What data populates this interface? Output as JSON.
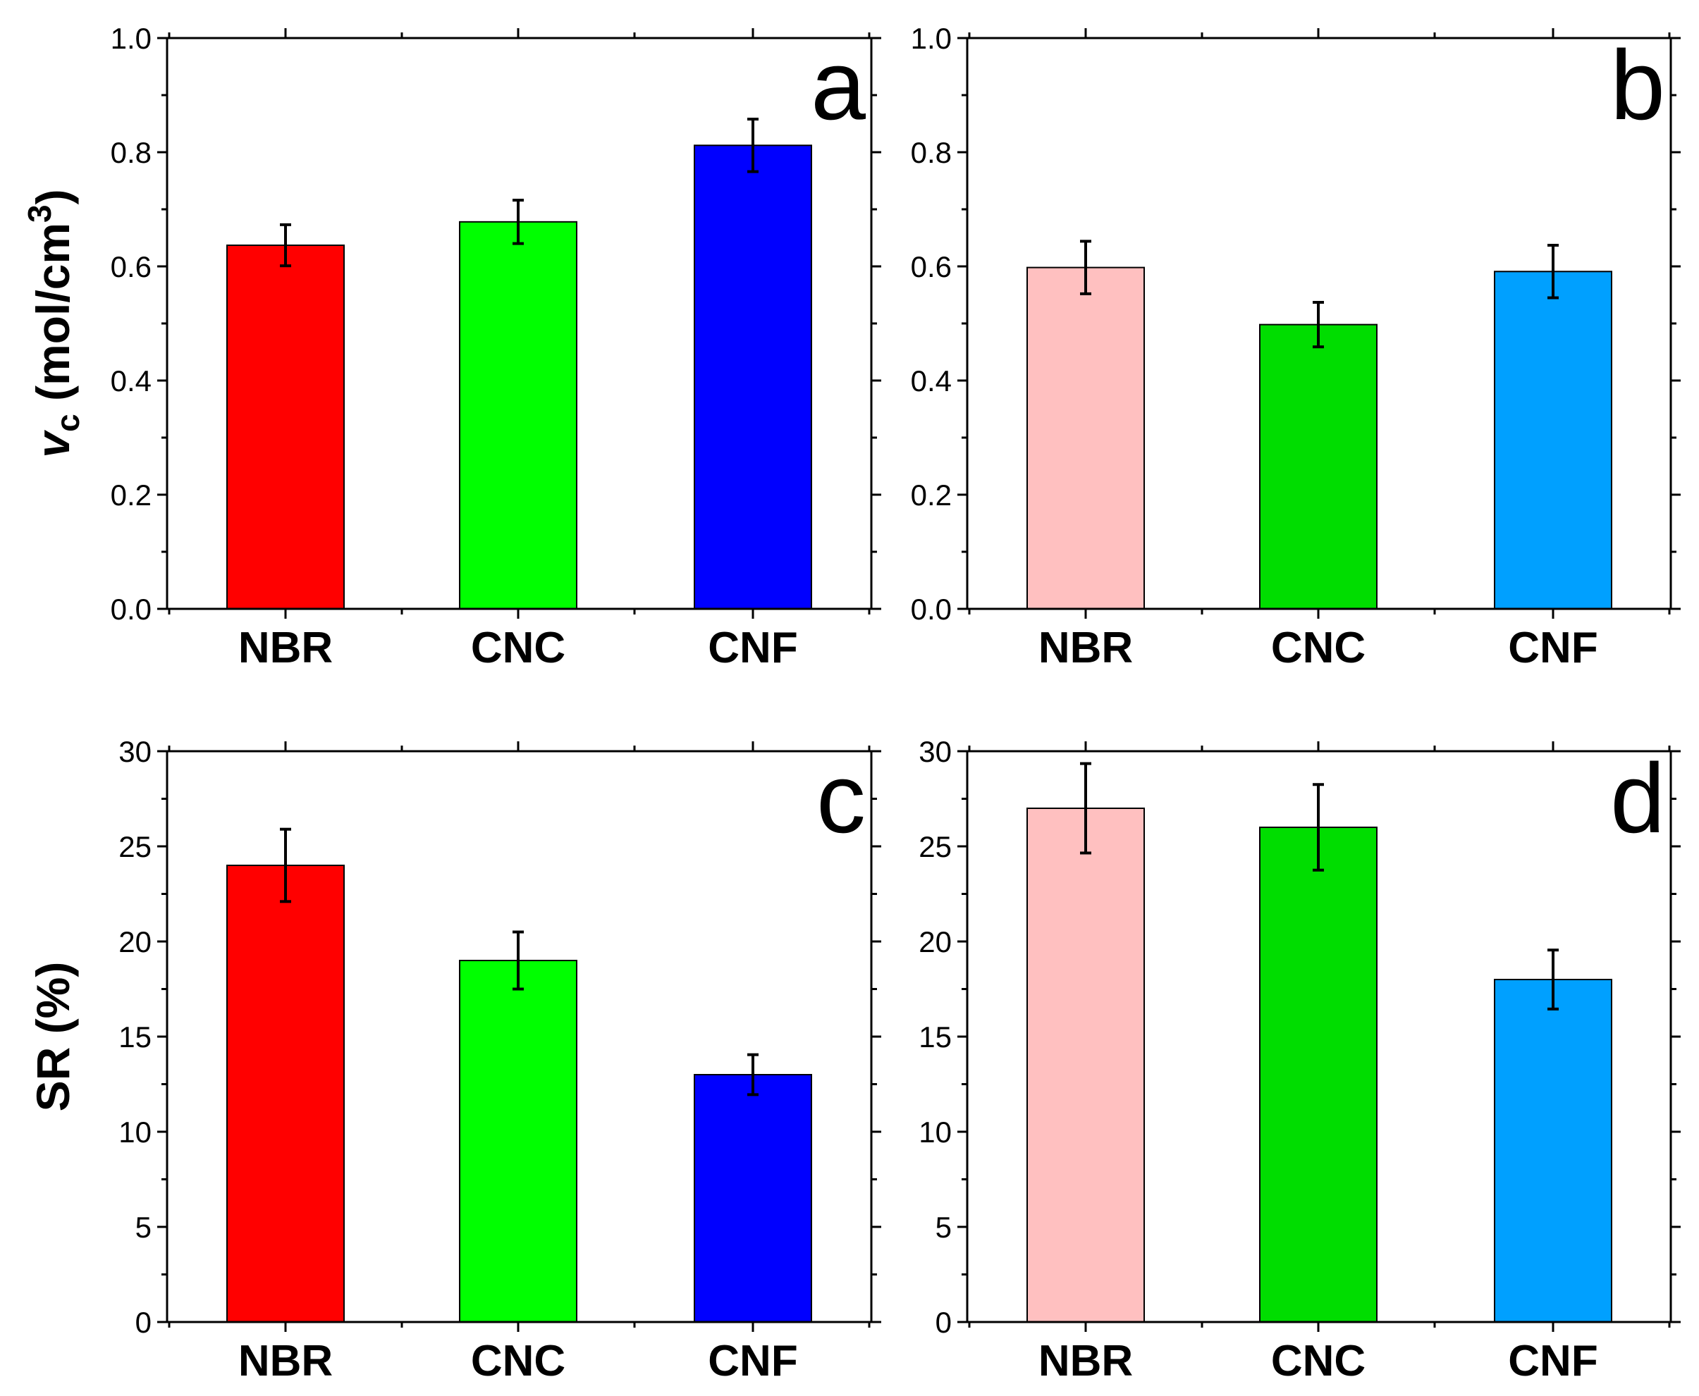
{
  "chart_data": [
    {
      "panel": "a",
      "type": "bar",
      "categories": [
        "NBR",
        "CNC",
        "CNF"
      ],
      "values": [
        0.637,
        0.678,
        0.812
      ],
      "errors": [
        0.036,
        0.038,
        0.046
      ],
      "colors": [
        "#ff0000",
        "#00ff00",
        "#0000ff"
      ],
      "ylim": [
        0,
        1.0
      ],
      "yticks": [
        "0.0",
        "0.2",
        "0.4",
        "0.6",
        "0.8",
        "1.0"
      ],
      "ylabel_main": "v",
      "ylabel_sub": "c",
      "ylabel_mid": " (mol/cm",
      "ylabel_sup": "3",
      "ylabel_end": ")"
    },
    {
      "panel": "b",
      "type": "bar",
      "categories": [
        "NBR",
        "CNC",
        "CNF"
      ],
      "values": [
        0.598,
        0.498,
        0.591
      ],
      "errors": [
        0.046,
        0.039,
        0.046
      ],
      "colors": [
        "#ffc0c0",
        "#00dd00",
        "#00a0ff"
      ],
      "ylim": [
        0,
        1.0
      ],
      "yticks": [
        "0.0",
        "0.2",
        "0.4",
        "0.6",
        "0.8",
        "1.0"
      ]
    },
    {
      "panel": "c",
      "type": "bar",
      "categories": [
        "NBR",
        "CNC",
        "CNF"
      ],
      "values": [
        24,
        19,
        13
      ],
      "errors": [
        1.9,
        1.5,
        1.05
      ],
      "colors": [
        "#ff0000",
        "#00ff00",
        "#0000ff"
      ],
      "ylim": [
        0,
        30
      ],
      "yticks": [
        "0",
        "5",
        "10",
        "15",
        "20",
        "25",
        "30"
      ],
      "ylabel": "SR (%)"
    },
    {
      "panel": "d",
      "type": "bar",
      "categories": [
        "NBR",
        "CNC",
        "CNF"
      ],
      "values": [
        27,
        26,
        18
      ],
      "errors": [
        2.35,
        2.25,
        1.55
      ],
      "colors": [
        "#ffc0c0",
        "#00dd00",
        "#00a0ff"
      ],
      "ylim": [
        0,
        30
      ],
      "yticks": [
        "0",
        "5",
        "10",
        "15",
        "20",
        "25",
        "30"
      ]
    }
  ]
}
